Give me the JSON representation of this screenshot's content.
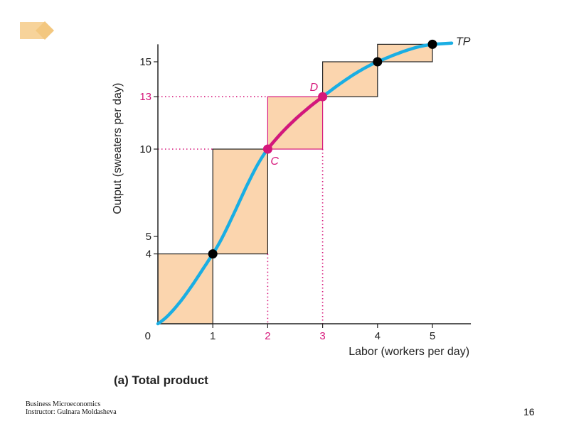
{
  "slide": {
    "caption": "(a) Total product",
    "footer_line1": "Business Microeconomics",
    "footer_line2": "Instructor: Gulnara Moldasheva",
    "page_number": "16"
  },
  "colors": {
    "curve": "#1aaee3",
    "highlight": "#d6167a",
    "bar_fill": "#fbd5ae",
    "point": "#000000",
    "axis": "#222222",
    "icon": "#f7d39a"
  },
  "chart_data": {
    "type": "line",
    "xlabel": "Labor (workers per day)",
    "ylabel": "Output (sweaters per day)",
    "xlim": [
      0,
      5.7
    ],
    "ylim": [
      0,
      16
    ],
    "origin_label": "0",
    "x_ticks": [
      {
        "value": 1,
        "label": "1",
        "highlight": false
      },
      {
        "value": 2,
        "label": "2",
        "highlight": true
      },
      {
        "value": 3,
        "label": "3",
        "highlight": true
      },
      {
        "value": 4,
        "label": "4",
        "highlight": false
      },
      {
        "value": 5,
        "label": "5",
        "highlight": false
      }
    ],
    "y_ticks": [
      {
        "value": 4,
        "label": "4",
        "highlight": false
      },
      {
        "value": 5,
        "label": "5",
        "highlight": false
      },
      {
        "value": 10,
        "label": "10",
        "highlight": false
      },
      {
        "value": 13,
        "label": "13",
        "highlight": true
      },
      {
        "value": 15,
        "label": "15",
        "highlight": false
      }
    ],
    "series": [
      {
        "name": "TP",
        "x": [
          0,
          1,
          2,
          3,
          4,
          5
        ],
        "y": [
          0,
          4,
          10,
          13,
          15,
          16
        ]
      }
    ],
    "bars": [
      {
        "x0": 0,
        "x1": 1,
        "y0": 0,
        "y1": 4,
        "highlight": false
      },
      {
        "x0": 1,
        "x1": 2,
        "y0": 4,
        "y1": 10,
        "highlight": false
      },
      {
        "x0": 2,
        "x1": 3,
        "y0": 10,
        "y1": 13,
        "highlight": true
      },
      {
        "x0": 3,
        "x1": 4,
        "y0": 13,
        "y1": 15,
        "highlight": false
      },
      {
        "x0": 4,
        "x1": 5,
        "y0": 15,
        "y1": 16,
        "highlight": false
      }
    ],
    "points": [
      {
        "x": 1,
        "y": 4,
        "label": "",
        "highlight": false
      },
      {
        "x": 2,
        "y": 10,
        "label": "C",
        "highlight": true
      },
      {
        "x": 3,
        "y": 13,
        "label": "D",
        "highlight": true
      },
      {
        "x": 4,
        "y": 15,
        "label": "",
        "highlight": false
      },
      {
        "x": 5,
        "y": 16,
        "label": "",
        "highlight": false
      }
    ],
    "highlight_segment": {
      "x0": 2,
      "x1": 3
    },
    "guide_lines": [
      {
        "orientation": "horizontal",
        "value": 10,
        "to_x": 1
      },
      {
        "orientation": "horizontal",
        "value": 13,
        "to_x": 2
      },
      {
        "orientation": "vertical",
        "value": 2,
        "from_y": 4
      },
      {
        "orientation": "vertical",
        "value": 3,
        "from_y": 10
      }
    ],
    "curve_label": "TP",
    "grid": false
  }
}
